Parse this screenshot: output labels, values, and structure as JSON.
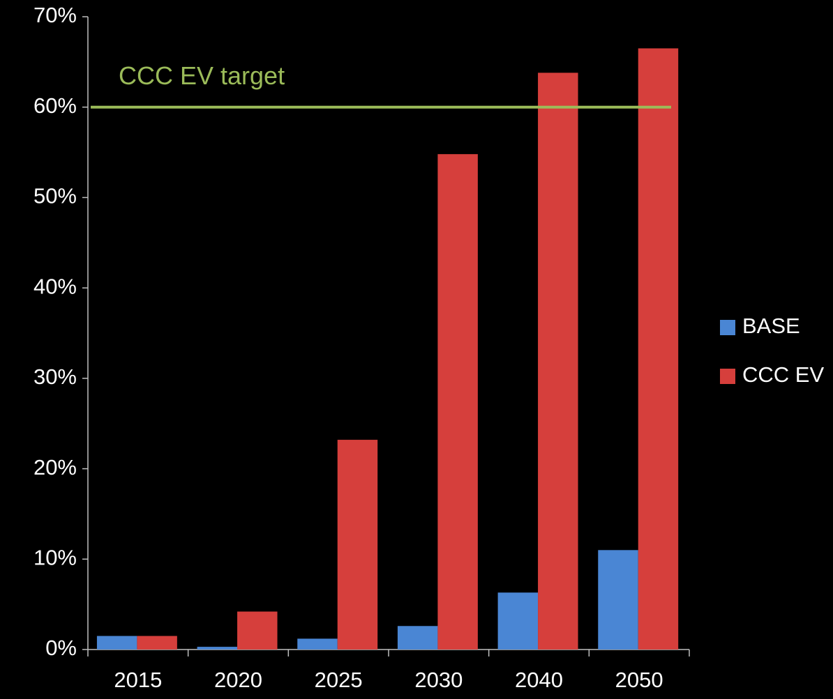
{
  "chart_data": {
    "type": "bar",
    "categories": [
      "2015",
      "2020",
      "2025",
      "2030",
      "2040",
      "2050"
    ],
    "series": [
      {
        "name": "BASE",
        "color": "#4a86d4",
        "values": [
          1.5,
          0.3,
          1.2,
          2.6,
          6.3,
          11.0
        ]
      },
      {
        "name": "CCC EV",
        "color": "#d63f3c",
        "values": [
          1.5,
          4.2,
          23.2,
          54.8,
          63.8,
          66.5
        ]
      }
    ],
    "ylim": [
      0,
      70
    ],
    "yticks": [
      {
        "value": 0,
        "label": "0%"
      },
      {
        "value": 10,
        "label": "10%"
      },
      {
        "value": 20,
        "label": "20%"
      },
      {
        "value": 30,
        "label": "30%"
      },
      {
        "value": 40,
        "label": "40%"
      },
      {
        "value": 50,
        "label": "50%"
      },
      {
        "value": 60,
        "label": "60%"
      },
      {
        "value": 70,
        "label": "70%"
      }
    ],
    "target": {
      "label": "CCC EV target",
      "value": 60,
      "color": "#9bbb59"
    },
    "legend": "right"
  }
}
